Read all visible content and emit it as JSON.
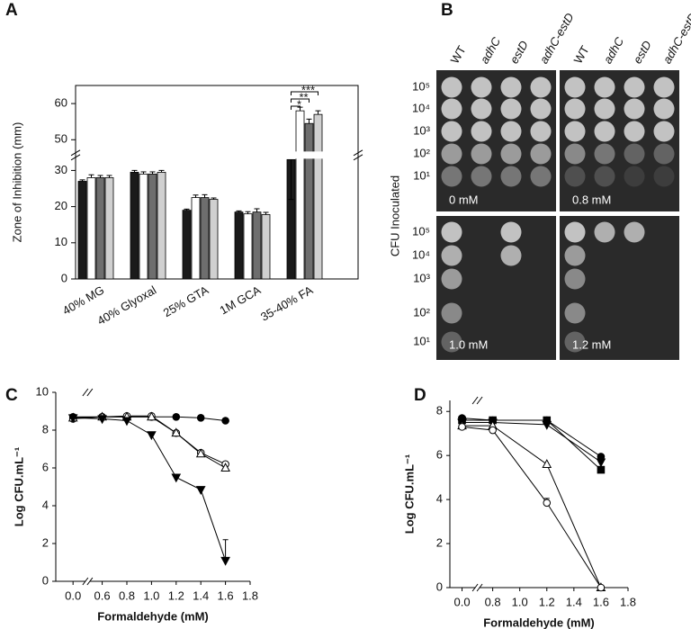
{
  "chart_data": [
    {
      "type": "bar",
      "panel_label": "A",
      "y_label": "Zone of Inhibition (mm)",
      "categories": [
        "40% MG",
        "40% Glyoxal",
        "25% GTA",
        "1M GCA",
        "35-40% FA"
      ],
      "series": [
        {
          "color": "#1a1a1a",
          "values": [
            27,
            29.5,
            19,
            18.5,
            33
          ],
          "errors": [
            0.4,
            0.5,
            0.3,
            0.3,
            0.5
          ]
        },
        {
          "color": "#ffffff",
          "values": [
            28,
            29,
            22.5,
            18,
            58
          ],
          "errors": [
            0.8,
            0.6,
            0.7,
            0.6,
            1
          ]
        },
        {
          "color": "#6e6e6e",
          "values": [
            28,
            29,
            22.5,
            18.5,
            54.5
          ],
          "errors": [
            0.6,
            0.6,
            0.8,
            0.9,
            1.2
          ]
        },
        {
          "color": "#d0d0d0",
          "values": [
            28,
            29.5,
            22,
            17.8,
            57
          ],
          "errors": [
            0.6,
            0.5,
            0.4,
            0.6,
            1
          ]
        }
      ],
      "ylim": [
        0,
        65
      ],
      "ybreak": [
        33,
        47
      ],
      "yticks": [
        0,
        10,
        20,
        30,
        50,
        60
      ],
      "annotations": [
        "*",
        "**",
        "***"
      ]
    },
    {
      "type": "line",
      "panel_label": "C",
      "x_label": "Formaldehyde (mM)",
      "y_label": "Log CFU.mL⁻¹",
      "x": [
        0,
        0.6,
        0.8,
        1.0,
        1.2,
        1.4,
        1.6
      ],
      "series": [
        {
          "marker": "circle-filled",
          "values": [
            8.7,
            8.7,
            8.7,
            8.7,
            8.7,
            8.65,
            8.5
          ]
        },
        {
          "marker": "circle-open",
          "values": [
            8.6,
            8.7,
            8.75,
            8.75,
            7.85,
            6.8,
            6.2
          ]
        },
        {
          "marker": "triangle-open",
          "values": [
            8.65,
            8.7,
            8.7,
            8.7,
            7.85,
            6.75,
            6.0
          ]
        },
        {
          "marker": "triangle-down-filled",
          "values": [
            8.65,
            8.6,
            8.5,
            7.75,
            5.5,
            4.85,
            1.1
          ],
          "errors": [
            null,
            null,
            null,
            null,
            null,
            null,
            1.1
          ]
        }
      ],
      "xlim": [
        -0.14,
        1.8
      ],
      "xbreak": [
        0.1,
        0.5
      ],
      "xticks": [
        {
          "value": 0,
          "label": "0.0"
        },
        0.6,
        0.8,
        {
          "value": 1,
          "label": "1.0"
        },
        1.2,
        1.4,
        1.6,
        1.8
      ],
      "ylim": [
        0,
        10
      ],
      "yticks": [
        0,
        2,
        4,
        6,
        8,
        10
      ]
    },
    {
      "type": "line",
      "panel_label": "D",
      "x_label": "Formaldehyde (mM)",
      "y_label": "Log CFU.mL⁻¹",
      "x": [
        0,
        0.8,
        1.2,
        1.6
      ],
      "series": [
        {
          "marker": "circle-filled",
          "values": [
            7.7,
            7.6,
            7.6,
            5.95
          ]
        },
        {
          "marker": "square-filled",
          "values": [
            7.6,
            7.6,
            7.6,
            5.35
          ]
        },
        {
          "marker": "triangle-down-filled",
          "values": [
            7.5,
            7.5,
            7.4,
            5.7
          ]
        },
        {
          "marker": "triangle-open",
          "values": [
            7.35,
            7.35,
            5.6,
            0
          ]
        },
        {
          "marker": "circle-open",
          "values": [
            7.3,
            7.15,
            3.85,
            0
          ],
          "errors": [
            null,
            null,
            0.2,
            null
          ]
        }
      ],
      "xlim": [
        -0.09,
        1.8
      ],
      "xbreak": [
        0.1,
        0.7
      ],
      "xticks": [
        {
          "value": 0,
          "label": "0.0"
        },
        0.8,
        {
          "value": 1,
          "label": "1.0"
        },
        1.2,
        1.4,
        1.6,
        1.8
      ],
      "ylim": [
        0,
        8.5
      ],
      "yticks": [
        0,
        2,
        4,
        6,
        8
      ]
    }
  ],
  "panel_b": {
    "panel_label": "B",
    "strains": [
      "WT",
      "adhC",
      "estD",
      "adhC-estD"
    ],
    "dilutions": [
      "10⁵",
      "10⁴",
      "10³",
      "10²",
      "10¹"
    ],
    "y_label": "CFU Inoculated",
    "concentrations": [
      "0 mM",
      "0.8 mM",
      "1.0 mM",
      "1.2 mM"
    ]
  }
}
